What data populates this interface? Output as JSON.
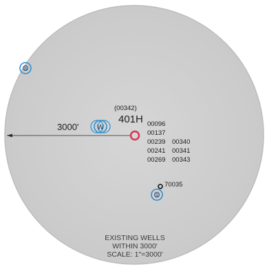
{
  "colors": {
    "background_circle": "#d4d4d4",
    "circle_border": "#bdbdbd",
    "subject_well": "#d9334f",
    "offset_wells": "#2d8fd0",
    "existing_well": "#111111"
  },
  "subject_well": {
    "permit": "(00342)",
    "name": "401H",
    "icon": "red-ring-well-symbol"
  },
  "radius_label": "3000'",
  "well_list": {
    "col1": [
      "00096",
      "00137",
      "00239",
      "00241",
      "00269"
    ],
    "col2": [
      "00340",
      "00341",
      "00343"
    ]
  },
  "offset_well_label": "70035",
  "offset_well_icons": [
    "blue-s-well-icon",
    "blue-w-well-icon",
    "blue-s-well-icon",
    "black-dot-well-icon"
  ],
  "legend": {
    "line1": "EXISTING WELLS",
    "line2": "WITHIN 3000'",
    "line3": "SCALE: 1\"=3000'"
  }
}
